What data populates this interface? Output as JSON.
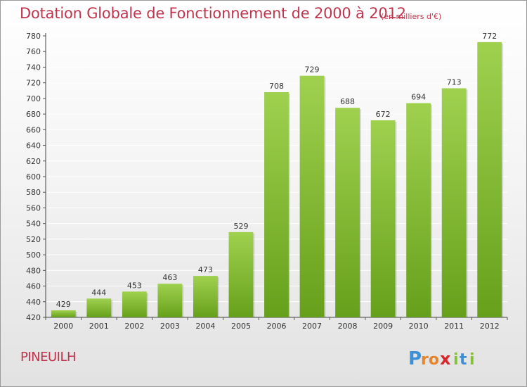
{
  "title": "Dotation Globale de Fonctionnement de 2000 à 2012",
  "unit_note": "(en milliers d'€)",
  "commune": "PINEUILH",
  "logo": {
    "text": "Proxiti",
    "icon_name": "proxiti-logo"
  },
  "colors": {
    "bar_light": "#9fd14f",
    "bar_dark": "#66a01b",
    "title": "#c0344d",
    "grid": "#ffffff"
  },
  "chart_data": {
    "type": "bar",
    "title": "Dotation Globale de Fonctionnement de 2000 à 2012",
    "subtitle": "(en milliers d'€)",
    "xlabel": "",
    "ylabel": "",
    "categories": [
      "2000",
      "2001",
      "2002",
      "2003",
      "2004",
      "2005",
      "2006",
      "2007",
      "2008",
      "2009",
      "2010",
      "2011",
      "2012"
    ],
    "values": [
      429,
      444,
      453,
      463,
      473,
      529,
      708,
      729,
      688,
      672,
      694,
      713,
      772
    ],
    "ylim": [
      420,
      780
    ],
    "yticks": [
      420,
      440,
      460,
      480,
      500,
      520,
      540,
      560,
      580,
      600,
      620,
      640,
      660,
      680,
      700,
      720,
      740,
      760,
      780
    ],
    "grid": true,
    "data_labels": true
  }
}
